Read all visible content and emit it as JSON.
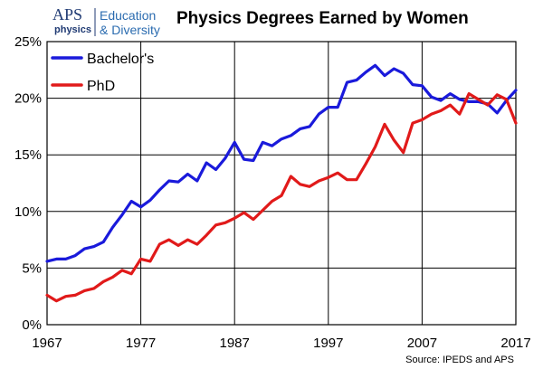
{
  "header": {
    "logo_brand": "APS",
    "logo_sub": "physics",
    "logo_line1": "Education",
    "logo_line2": "& Diversity",
    "title": "Physics Degrees Earned by Women"
  },
  "footer": {
    "source": "Source: IPEDS and APS"
  },
  "chart_data": {
    "type": "line",
    "title": "Physics Degrees Earned by Women",
    "xlabel": "",
    "ylabel": "",
    "xlim": [
      1967,
      2017
    ],
    "ylim": [
      0,
      25
    ],
    "x_ticks": [
      1967,
      1977,
      1987,
      1997,
      2007,
      2017
    ],
    "y_ticks": [
      0,
      5,
      10,
      15,
      20,
      25
    ],
    "y_tick_labels": [
      "0%",
      "5%",
      "10%",
      "15%",
      "20%",
      "25%"
    ],
    "grid": "vertical and horizontal at major ticks",
    "legend_position": "top-left",
    "x": [
      1967,
      1968,
      1969,
      1970,
      1971,
      1972,
      1973,
      1974,
      1975,
      1976,
      1977,
      1978,
      1979,
      1980,
      1981,
      1982,
      1983,
      1984,
      1985,
      1986,
      1987,
      1988,
      1989,
      1990,
      1991,
      1992,
      1993,
      1994,
      1995,
      1996,
      1997,
      1998,
      1999,
      2000,
      2001,
      2002,
      2003,
      2004,
      2005,
      2006,
      2007,
      2008,
      2009,
      2010,
      2011,
      2012,
      2013,
      2014,
      2015,
      2016,
      2017
    ],
    "series": [
      {
        "name": "Bachelor's",
        "color": "#1a1adb",
        "values": [
          5.6,
          5.8,
          5.8,
          6.1,
          6.7,
          6.9,
          7.3,
          8.6,
          9.7,
          10.9,
          10.4,
          11.0,
          11.9,
          12.7,
          12.6,
          13.3,
          12.7,
          14.3,
          13.7,
          14.7,
          16.1,
          14.6,
          14.5,
          16.1,
          15.8,
          16.4,
          16.7,
          17.3,
          17.5,
          18.6,
          19.2,
          19.2,
          21.4,
          21.6,
          22.3,
          22.9,
          22.0,
          22.6,
          22.2,
          21.2,
          21.1,
          20.1,
          19.8,
          20.4,
          19.9,
          19.7,
          19.7,
          19.5,
          18.7,
          19.8,
          20.7
        ]
      },
      {
        "name": "PhD",
        "color": "#e11a1a",
        "values": [
          2.6,
          2.1,
          2.5,
          2.6,
          3.0,
          3.2,
          3.8,
          4.2,
          4.8,
          4.5,
          5.8,
          5.6,
          7.1,
          7.5,
          7.0,
          7.5,
          7.1,
          7.9,
          8.8,
          9.0,
          9.4,
          9.9,
          9.3,
          10.1,
          10.9,
          11.4,
          13.1,
          12.4,
          12.2,
          12.7,
          13.0,
          13.4,
          12.8,
          12.8,
          14.2,
          15.7,
          17.7,
          16.3,
          15.2,
          17.8,
          18.1,
          18.6,
          18.9,
          19.4,
          18.6,
          20.4,
          19.9,
          19.4,
          20.3,
          19.9,
          17.8
        ]
      }
    ]
  }
}
